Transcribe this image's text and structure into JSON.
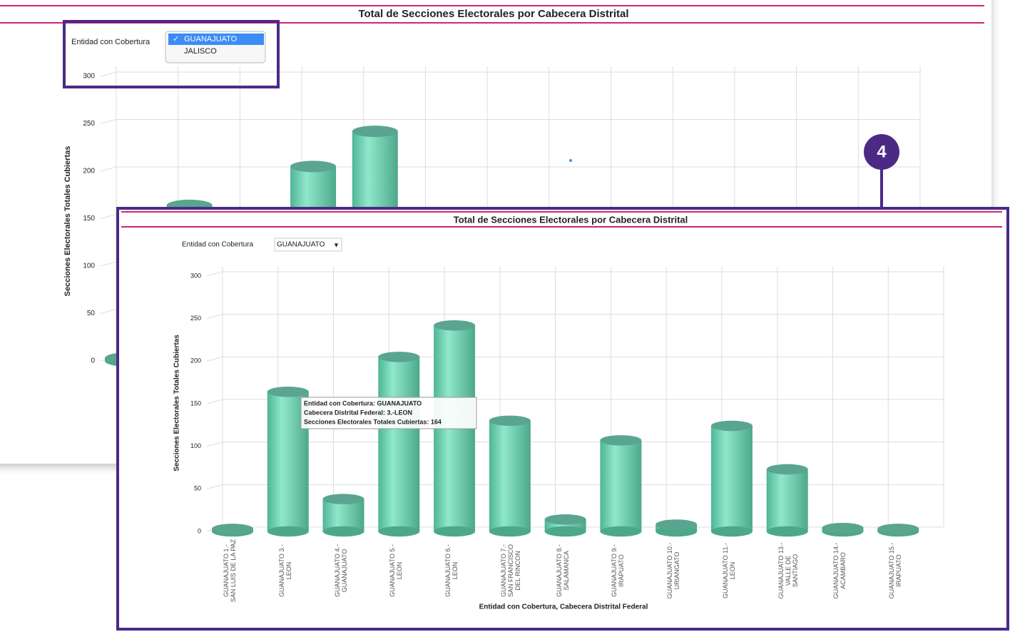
{
  "callout": "4",
  "chart_data": [
    {
      "type": "bar",
      "title": "Total de Secciones Electorales por Cabecera Distrital",
      "filter_label": "Entidad con Cobertura",
      "filter_options": [
        "GUANAJUATO",
        "JALISCO"
      ],
      "ylabel": "Secciones Electorales Totales Cubiertas",
      "values": [
        3,
        164,
        38,
        205,
        242,
        130,
        14,
        107,
        8,
        124,
        73,
        4,
        3
      ],
      "color": "#6fd6b4",
      "ylim": [
        0,
        300
      ],
      "yticks": [
        0,
        50,
        100,
        150,
        200,
        250,
        300
      ],
      "grid": true
    },
    {
      "type": "bar",
      "title": "Total de Secciones Electorales por Cabecera Distrital",
      "filter_label": "Entidad con Cobertura",
      "filter_value": "GUANAJUATO",
      "ylabel": "Secciones Electorales Totales Cubiertas",
      "xlabel": "Entidad con Cobertura, Cabecera Distrital Federal",
      "categories": [
        "GUANAJUATO 1.-SAN LUIS DE LA PAZ",
        "GUANAJUATO 3.-LEON",
        "GUANAJUATO 4.-GUANAJUATO",
        "GUANAJUATO 5.-LEON",
        "GUANAJUATO 6.-LEON",
        "GUANAJUATO 7.-SAN FRANCISCO DEL RINCON",
        "GUANAJUATO 8.-SALAMANCA",
        "GUANAJUATO 9.-IRAPUATO",
        "GUANAJUATO 10.-URIANGATO",
        "GUANAJUATO 11.-LEON",
        "GUANAJUATO 13.-VALLE DE SANTIAGO",
        "GUANAJUATO 14.-ACAMBARO",
        "GUANAJUATO 15.-IRAPUATO"
      ],
      "values": [
        3,
        164,
        38,
        205,
        242,
        130,
        14,
        107,
        8,
        124,
        73,
        4,
        3
      ],
      "color": "#6fd6b4",
      "ylim": [
        0,
        300
      ],
      "yticks": [
        0,
        50,
        100,
        150,
        200,
        250,
        300
      ],
      "grid": true,
      "tooltip": [
        "Entidad con Cobertura: GUANAJUATO",
        "Cabecera Distrital Federal: 3.-LEON",
        "Secciones Electorales Totales Cubiertas: 164"
      ]
    }
  ]
}
